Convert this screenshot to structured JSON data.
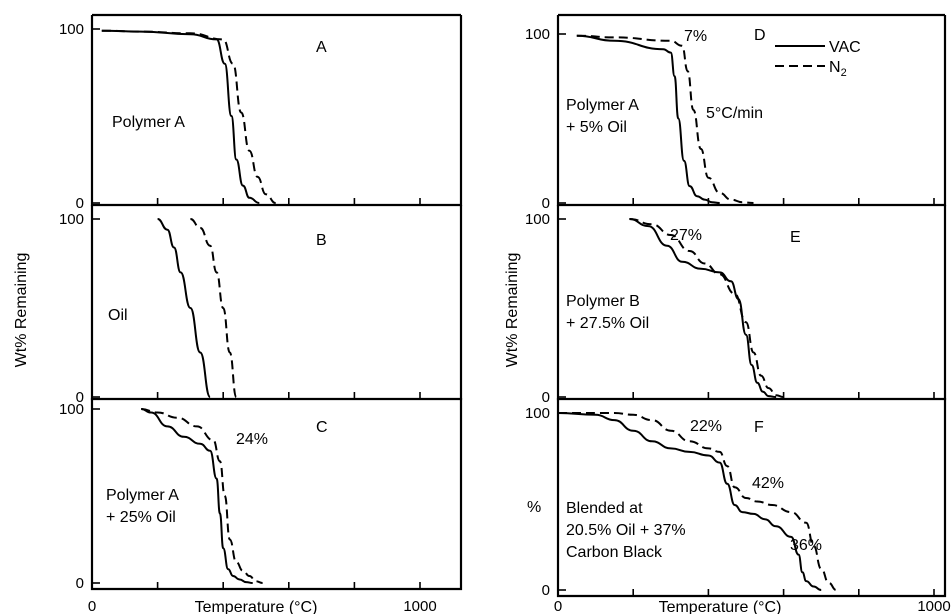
{
  "figure": {
    "ylabel_left": "Wt% Remaining",
    "ylabel_right": "Wt% Remaining",
    "xlabel_left": "Temperature (°C)",
    "xlabel_right": "Temperature (°C)",
    "x_tick_left": [
      "0",
      "1000"
    ],
    "x_tick_right": [
      "0",
      "1000"
    ]
  },
  "legend": {
    "vac": "VAC",
    "n2": "N",
    "n2_sub": "2",
    "rate": "5°C/min"
  },
  "chart_data": [
    {
      "type": "line",
      "panel": "A",
      "label_lines": [
        "Polymer A"
      ],
      "xlim": [
        0,
        1000
      ],
      "ylim": [
        0,
        100
      ],
      "yticks": [
        "100",
        "0"
      ],
      "annotations": [],
      "series": [
        {
          "name": "VAC",
          "x": [
            30,
            150,
            300,
            380,
            405,
            425,
            440,
            460,
            480,
            510
          ],
          "y": [
            99,
            98.5,
            97,
            94,
            80,
            50,
            25,
            10,
            3,
            0
          ]
        },
        {
          "name": "N₂",
          "x": [
            30,
            150,
            300,
            400,
            430,
            455,
            480,
            505,
            530,
            560
          ],
          "y": [
            99,
            98.5,
            97.5,
            94,
            80,
            52,
            30,
            15,
            5,
            0
          ]
        }
      ]
    },
    {
      "type": "line",
      "panel": "B",
      "label_lines": [
        "Oil"
      ],
      "xlim": [
        0,
        1000
      ],
      "ylim": [
        0,
        100
      ],
      "yticks": [
        "100",
        "0"
      ],
      "annotations": [],
      "series": [
        {
          "name": "VAC",
          "x": [
            200,
            230,
            250,
            270,
            300,
            330,
            360
          ],
          "y": [
            100,
            94,
            84,
            70,
            50,
            25,
            0
          ]
        },
        {
          "name": "N₂",
          "x": [
            300,
            330,
            360,
            380,
            400,
            420,
            440
          ],
          "y": [
            100,
            95,
            85,
            70,
            50,
            25,
            0
          ]
        }
      ]
    },
    {
      "type": "line",
      "panel": "C",
      "label_lines": [
        "Polymer A",
        "+ 25% Oil"
      ],
      "xlim": [
        0,
        1000
      ],
      "ylim": [
        0,
        100
      ],
      "yticks": [
        "100",
        "0"
      ],
      "annotations": [
        "24%"
      ],
      "series": [
        {
          "name": "VAC",
          "x": [
            150,
            180,
            230,
            280,
            330,
            360,
            380,
            390,
            400,
            415,
            430,
            450,
            470,
            490
          ],
          "y": [
            100,
            98,
            90,
            84,
            80,
            76,
            60,
            40,
            20,
            8,
            4,
            2,
            0.5,
            0
          ]
        },
        {
          "name": "N₂",
          "x": [
            150,
            200,
            260,
            320,
            370,
            390,
            405,
            420,
            440,
            460,
            480,
            500,
            520
          ],
          "y": [
            100,
            98,
            95,
            90,
            82,
            70,
            50,
            25,
            12,
            7,
            4,
            1,
            0
          ]
        }
      ]
    },
    {
      "type": "line",
      "panel": "D",
      "label_lines": [
        "Polymer A",
        "+ 5% Oil"
      ],
      "xlim": [
        0,
        1000
      ],
      "ylim": [
        0,
        100
      ],
      "yticks": [
        "100",
        "0"
      ],
      "annotations": [
        "7%"
      ],
      "series": [
        {
          "name": "VAC",
          "x": [
            50,
            150,
            280,
            300,
            310,
            320,
            335,
            350,
            370,
            390,
            410,
            430
          ],
          "y": [
            99,
            96,
            91,
            89,
            75,
            50,
            25,
            10,
            4,
            2,
            0.5,
            0
          ]
        },
        {
          "name": "N₂",
          "x": [
            50,
            150,
            300,
            330,
            345,
            360,
            380,
            400,
            430,
            460,
            490,
            520
          ],
          "y": [
            99,
            98,
            96,
            93,
            78,
            55,
            32,
            15,
            6,
            2,
            0.5,
            0
          ]
        }
      ]
    },
    {
      "type": "line",
      "panel": "E",
      "label_lines": [
        "Polymer B",
        "+ 27.5% Oil"
      ],
      "xlim": [
        0,
        1000
      ],
      "ylim": [
        0,
        100
      ],
      "yticks": [
        "100",
        "0"
      ],
      "annotations": [
        "27%"
      ],
      "series": [
        {
          "name": "VAC",
          "x": [
            190,
            240,
            290,
            330,
            380,
            430,
            460,
            480,
            500,
            515,
            530,
            545,
            560,
            580
          ],
          "y": [
            100,
            96,
            85,
            76,
            72,
            70,
            65,
            55,
            35,
            18,
            8,
            3,
            0.5,
            0
          ]
        },
        {
          "name": "N₂",
          "x": [
            190,
            250,
            300,
            350,
            390,
            430,
            470,
            500,
            520,
            540,
            560,
            580,
            600
          ],
          "y": [
            100,
            97,
            91,
            82,
            75,
            69,
            58,
            42,
            25,
            12,
            5,
            1,
            0
          ]
        }
      ]
    },
    {
      "type": "line",
      "panel": "F",
      "label_lines": [
        "Blended at",
        "20.5% Oil + 37%",
        "Carbon Black"
      ],
      "ylabel": "%",
      "xlim": [
        0,
        1000
      ],
      "ylim": [
        0,
        100
      ],
      "yticks": [
        "100",
        "0"
      ],
      "annotations": [
        "22%",
        "42%",
        "36%"
      ],
      "series": [
        {
          "name": "VAC",
          "x": [
            0,
            100,
            150,
            200,
            250,
            300,
            350,
            400,
            430,
            450,
            470,
            490,
            520,
            550,
            580,
            620,
            640,
            650,
            660,
            680,
            700
          ],
          "y": [
            100,
            99,
            96,
            90,
            84,
            80,
            78,
            76,
            72,
            60,
            48,
            44,
            43,
            40,
            36,
            30,
            20,
            10,
            5,
            2,
            0
          ]
        },
        {
          "name": "N₂",
          "x": [
            0,
            150,
            200,
            250,
            300,
            350,
            400,
            430,
            450,
            470,
            500,
            530,
            570,
            620,
            660,
            680,
            700,
            720,
            740
          ],
          "y": [
            100,
            100,
            99,
            96,
            90,
            84,
            80,
            78,
            70,
            58,
            52,
            50,
            48,
            44,
            38,
            25,
            12,
            4,
            0
          ]
        }
      ]
    }
  ]
}
